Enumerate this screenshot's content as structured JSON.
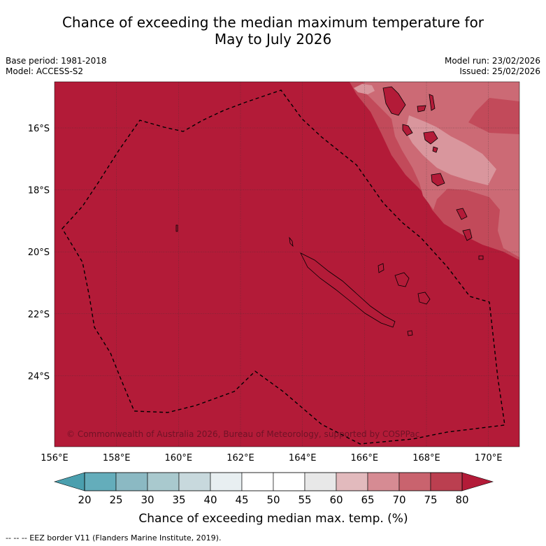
{
  "title_line1": "Chance of exceeding the median maximum temperature for",
  "title_line2": "May to July 2026",
  "base_period": "Base period: 1981-2018",
  "model": "Model: ACCESS-S2",
  "model_run": "Model run: 23/02/2026",
  "issued": "Issued: 25/02/2026",
  "copyright": "© Commonwealth of Australia 2026, Bureau of Meteorology, supported by COSPPac",
  "map": {
    "lon_labels": [
      "156°E",
      "158°E",
      "160°E",
      "162°E",
      "164°E",
      "166°E",
      "168°E",
      "170°E"
    ],
    "lat_labels": [
      "16°S",
      "18°S",
      "20°S",
      "22°S",
      "24°S"
    ],
    "base_color": "#b31b38"
  },
  "legend": {
    "ticks": [
      "20",
      "25",
      "30",
      "35",
      "40",
      "45",
      "50",
      "55",
      "60",
      "65",
      "70",
      "75",
      "80"
    ],
    "colors": [
      "#64adbb",
      "#8bb9c3",
      "#a9c9ce",
      "#c8d9dd",
      "#e8eff1",
      "#ffffff",
      "#ffffff",
      "#e8e8e8",
      "#e2babd",
      "#d68b93",
      "#c9636e",
      "#bb3f50"
    ],
    "low_color": "#4a9fae",
    "high_color": "#b31b38",
    "label": "Chance of exceeding median max. temp. (%)"
  },
  "footnote": "--  --  -- EEZ border V11 (Flanders Marine Institute, 2019)."
}
